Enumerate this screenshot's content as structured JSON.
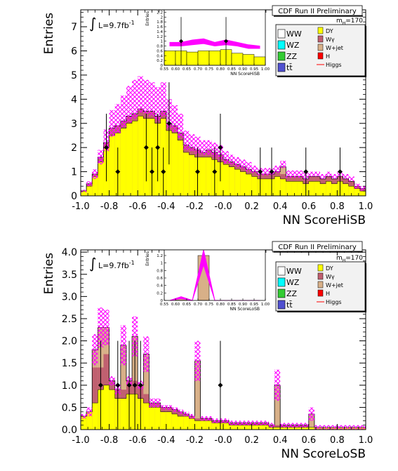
{
  "colors": {
    "DY": "#ffff00",
    "Wgamma": "#c06070",
    "Wjet": "#d8b088",
    "H": "#ff0000",
    "WW": "#ffffff",
    "WZ": "#00ffff",
    "ZZ": "#33cc33",
    "ttbar": "#5050d0",
    "band": "#ff00ff"
  },
  "chart_data": [
    {
      "type": "bar",
      "header": "CDF Run II Preliminary",
      "mass_label": "m",
      "mass_sub": "H",
      "mass_value": "=170",
      "lumi_label": "L=9.7fb",
      "lumi_sup": "-1",
      "xlabel": "NN ScoreHiSB",
      "ylabel": "Entries",
      "xlim": [
        -1.0,
        1.0
      ],
      "ylim": [
        0,
        7.7
      ],
      "x_ticks": [
        "-1.0",
        "-0.8",
        "-0.6",
        "-0.4",
        "-0.2",
        "-0.0",
        "0.2",
        "0.4",
        "0.6",
        "0.8",
        "1.0"
      ],
      "y_ticks": [
        "0",
        "1",
        "2",
        "3",
        "4",
        "5",
        "6",
        "7"
      ],
      "legend_left": [
        "WW",
        "WZ",
        "ZZ",
        "tt̄"
      ],
      "legend_right": [
        "DY",
        "Wγ",
        "W+jet",
        "H",
        "Higgs"
      ],
      "bins": [
        -1.0,
        -0.96,
        -0.92,
        -0.88,
        -0.84,
        -0.8,
        -0.76,
        -0.72,
        -0.68,
        -0.64,
        -0.6,
        -0.56,
        -0.52,
        -0.48,
        -0.44,
        -0.4,
        -0.36,
        -0.32,
        -0.28,
        -0.24,
        -0.2,
        -0.16,
        -0.12,
        -0.08,
        -0.04,
        0.0,
        0.04,
        0.08,
        0.12,
        0.16,
        0.2,
        0.24,
        0.28,
        0.32,
        0.36,
        0.4,
        0.44,
        0.48,
        0.52,
        0.56,
        0.6,
        0.64,
        0.68,
        0.72,
        0.76,
        0.8,
        0.84,
        0.88,
        0.92,
        0.96,
        1.0
      ],
      "stack": [
        {
          "name": "DY",
          "values": [
            0.2,
            0.4,
            0.8,
            1.4,
            2.0,
            2.5,
            2.6,
            2.8,
            3.0,
            3.1,
            3.3,
            3.2,
            3.2,
            3.0,
            3.2,
            2.7,
            2.6,
            2.3,
            1.8,
            1.7,
            1.6,
            1.6,
            1.6,
            1.5,
            1.4,
            1.3,
            1.2,
            1.1,
            1.0,
            0.9,
            0.8,
            0.7,
            0.7,
            0.7,
            0.8,
            0.7,
            0.6,
            0.6,
            0.6,
            0.5,
            0.6,
            0.6,
            0.5,
            0.6,
            0.5,
            0.6,
            0.5,
            0.4,
            0.3,
            0.2
          ]
        },
        {
          "name": "Wγ",
          "values": [
            0.0,
            0.1,
            0.1,
            0.2,
            0.2,
            0.3,
            0.3,
            0.3,
            0.3,
            0.3,
            0.3,
            0.3,
            0.3,
            0.3,
            0.3,
            0.3,
            0.3,
            0.3,
            0.3,
            0.3,
            0.3,
            0.2,
            0.3,
            0.3,
            0.3,
            0.2,
            0.2,
            0.2,
            0.2,
            0.2,
            0.2,
            0.2,
            0.2,
            0.2,
            0.2,
            0.2,
            0.2,
            0.2,
            0.2,
            0.2,
            0.2,
            0.2,
            0.2,
            0.2,
            0.2,
            0.2,
            0.2,
            0.2,
            0.1,
            0.1
          ]
        },
        {
          "name": "W+jet",
          "values": [
            0.0,
            0.0,
            0.0,
            0.0,
            0.0,
            0.0,
            0.0,
            0.0,
            0.0,
            0.0,
            0.0,
            0.0,
            0.0,
            0.0,
            0.0,
            0.0,
            0.0,
            0.0,
            0.0,
            0.0,
            0.0,
            0.0,
            0.0,
            0.0,
            0.0,
            0.0,
            0.0,
            0.0,
            0.0,
            0.0,
            0.0,
            0.0,
            0.0,
            0.0,
            0.0,
            0.3,
            0.0,
            0.0,
            0.0,
            0.0,
            0.0,
            0.0,
            0.0,
            0.0,
            0.0,
            0.0,
            0.0,
            0.0,
            0.0,
            0.0
          ]
        }
      ],
      "band_halfwidth": [
        0.05,
        0.1,
        0.2,
        0.3,
        0.45,
        0.55,
        0.6,
        0.65,
        0.75,
        0.8,
        0.75,
        0.7,
        0.7,
        0.7,
        0.7,
        0.6,
        0.55,
        0.5,
        0.4,
        0.35,
        0.35,
        0.3,
        0.3,
        0.3,
        0.3,
        0.25,
        0.2,
        0.2,
        0.2,
        0.2,
        0.15,
        0.15,
        0.15,
        0.15,
        0.15,
        0.15,
        0.15,
        0.15,
        0.15,
        0.15,
        0.1,
        0.1,
        0.1,
        0.1,
        0.1,
        0.1,
        0.1,
        0.1,
        0.1,
        0.1
      ],
      "band_offset": [
        0,
        0,
        0,
        0,
        0.1,
        0.2,
        0.3,
        0.4,
        0.5,
        0.6,
        0.6,
        0.6,
        0.5,
        0.5,
        0.5,
        0.4,
        0.3,
        0.3,
        0.2,
        0.2,
        0.2,
        0.2,
        0.1,
        0.1,
        0.1,
        0.1,
        0.1,
        0.1,
        0.1,
        0.1,
        0.1,
        0.1,
        0.1,
        0.1,
        0.1,
        0.1,
        0.1,
        0.1,
        0.1,
        0.1,
        0.1,
        0.1,
        0.1,
        0.1,
        0.1,
        0.1,
        0.1,
        0.1,
        0,
        0
      ],
      "data_points": [
        {
          "x": -0.82,
          "y": 2,
          "err": 1.4
        },
        {
          "x": -0.74,
          "y": 1,
          "err": 1.0
        },
        {
          "x": -0.54,
          "y": 2,
          "err": 1.4
        },
        {
          "x": -0.5,
          "y": 1,
          "err": 1.0
        },
        {
          "x": -0.46,
          "y": 2,
          "err": 1.4
        },
        {
          "x": -0.42,
          "y": 1,
          "err": 1.0
        },
        {
          "x": -0.38,
          "y": 3,
          "err": 1.7
        },
        {
          "x": -0.18,
          "y": 1,
          "err": 1.0
        },
        {
          "x": -0.06,
          "y": 1,
          "err": 1.0
        },
        {
          "x": -0.02,
          "y": 2,
          "err": 1.4
        },
        {
          "x": 0.26,
          "y": 1,
          "err": 1.0
        },
        {
          "x": 0.34,
          "y": 1,
          "err": 1.0
        },
        {
          "x": 0.58,
          "y": 1,
          "err": 1.0
        },
        {
          "x": 0.82,
          "y": 1,
          "err": 1.0
        }
      ],
      "inset": {
        "type": "bar",
        "xlabel": "NN ScoreHiSB",
        "ylabel": "Entries",
        "xlim": [
          0.55,
          1.0
        ],
        "ylim": [
          0,
          2.3
        ],
        "x_ticks": [
          "0.55",
          "0.60",
          "0.65",
          "0.70",
          "0.75",
          "0.80",
          "0.85",
          "0.90",
          "0.95",
          "1.00"
        ],
        "y_ticks": [
          "0",
          "0.2",
          "0.4",
          "0.6",
          "0.8",
          "1",
          "1.2",
          "1.4",
          "1.6",
          "1.8",
          "2",
          "2.2"
        ],
        "bins": [
          0.55,
          0.6,
          0.65,
          0.7,
          0.75,
          0.8,
          0.85,
          0.9,
          0.95,
          1.0
        ],
        "values": [
          0.6,
          0.6,
          0.55,
          0.6,
          0.6,
          0.65,
          0.5,
          0.45,
          0.35
        ],
        "band_low": [
          0.8,
          0.8,
          0.85,
          0.9,
          0.8,
          0.85,
          0.8,
          0.7,
          0.7
        ],
        "band_high": [
          0.95,
          0.95,
          1.05,
          1.1,
          0.95,
          1.05,
          0.95,
          0.85,
          0.8
        ],
        "data_points": [
          {
            "x": 0.625,
            "y": 1,
            "err": 1.0
          },
          {
            "x": 0.825,
            "y": 1,
            "err": 1.0
          }
        ]
      }
    },
    {
      "type": "bar",
      "header": "CDF Run II Preliminary",
      "mass_label": "m",
      "mass_sub": "H",
      "mass_value": "=170",
      "lumi_label": "L=9.7fb",
      "lumi_sup": "-1",
      "xlabel": "NN ScoreLoSB",
      "ylabel": "Entries",
      "xlim": [
        -1.0,
        1.0
      ],
      "ylim": [
        0,
        4.05
      ],
      "x_ticks": [
        "-1.0",
        "-0.8",
        "-0.6",
        "-0.4",
        "-0.2",
        "-0.0",
        "0.2",
        "0.4",
        "0.6",
        "0.8",
        "1.0"
      ],
      "y_ticks": [
        "0.0",
        "0.5",
        "1.0",
        "1.5",
        "2.0",
        "2.5",
        "3.0",
        "3.5",
        "4.0"
      ],
      "legend_left": [
        "WW",
        "WZ",
        "ZZ",
        "tt̄"
      ],
      "legend_right": [
        "DY",
        "Wγ",
        "W+jet",
        "H",
        "Higgs"
      ],
      "bins": [
        -1.0,
        -0.96,
        -0.92,
        -0.88,
        -0.84,
        -0.8,
        -0.76,
        -0.72,
        -0.68,
        -0.64,
        -0.6,
        -0.56,
        -0.52,
        -0.48,
        -0.44,
        -0.4,
        -0.36,
        -0.32,
        -0.28,
        -0.24,
        -0.2,
        -0.16,
        -0.12,
        -0.08,
        -0.04,
        0.0,
        0.04,
        0.08,
        0.12,
        0.16,
        0.2,
        0.24,
        0.28,
        0.32,
        0.36,
        0.4,
        0.44,
        0.48,
        0.52,
        0.56,
        0.6,
        0.64,
        0.68,
        0.72,
        0.76,
        0.8,
        0.84,
        0.88,
        0.92,
        0.96,
        1.0
      ],
      "stack": [
        {
          "name": "DY",
          "values": [
            0.3,
            0.4,
            0.6,
            0.9,
            1.0,
            0.9,
            0.7,
            0.7,
            0.8,
            0.8,
            0.7,
            0.6,
            0.5,
            0.5,
            0.4,
            0.4,
            0.35,
            0.3,
            0.3,
            0.25,
            0.2,
            0.2,
            0.2,
            0.15,
            0.15,
            0.15,
            0.1,
            0.1,
            0.1,
            0.1,
            0.1,
            0.1,
            0.1,
            0.05,
            0.05,
            0.05,
            0.05,
            0.05,
            0.05,
            0.05,
            0.05,
            0.05,
            0.05,
            0.05,
            0.05,
            0.05,
            0.05,
            0.05,
            0.05,
            0.05
          ]
        },
        {
          "name": "Wγ",
          "values": [
            0.0,
            0.0,
            0.8,
            0.5,
            0.7,
            0.2,
            0.2,
            0.2,
            0.3,
            0.3,
            0.3,
            0.2,
            0.1,
            0.1,
            0.1,
            0.1,
            0.1,
            0.1,
            0.05,
            0.05,
            0.05,
            0.05,
            0.05,
            0.05,
            0.05,
            0.05,
            0.05,
            0.05,
            0.05,
            0.05,
            0.05,
            0.05,
            0.05,
            0.05,
            0.05,
            0.05,
            0.05,
            0.05,
            0.05,
            0.05,
            0.0,
            0.0,
            0.0,
            0.0,
            0.0,
            0.0,
            0.0,
            0.0,
            0.0,
            0.0
          ]
        },
        {
          "name": "W+jet",
          "values": [
            0.0,
            0.0,
            0.4,
            0.9,
            0.6,
            0.0,
            0.0,
            1.0,
            0.0,
            1.0,
            0.0,
            0.9,
            0.0,
            0.0,
            0.0,
            0.0,
            0.0,
            0.0,
            0.0,
            0.0,
            1.3,
            0.0,
            0.0,
            0.0,
            0.0,
            0.0,
            0.0,
            0.0,
            0.0,
            0.0,
            0.0,
            0.0,
            0.0,
            0.0,
            0.9,
            0.0,
            0.0,
            0.0,
            0.0,
            0.0,
            0.3,
            0.0,
            0.0,
            0.0,
            0.0,
            0.0,
            0.0,
            0.0,
            0.0,
            0.0
          ]
        }
      ],
      "band_halfwidth": [
        0.05,
        0.1,
        0.35,
        0.45,
        0.4,
        0.1,
        0.1,
        0.45,
        0.1,
        0.45,
        0.1,
        0.4,
        0.1,
        0.1,
        0.05,
        0.05,
        0.05,
        0.05,
        0.05,
        0.05,
        0.45,
        0.05,
        0.05,
        0.05,
        0.05,
        0.05,
        0.05,
        0.05,
        0.05,
        0.05,
        0.05,
        0.05,
        0.05,
        0.05,
        0.35,
        0.05,
        0.05,
        0.05,
        0.05,
        0.05,
        0.15,
        0.05,
        0.05,
        0.05,
        0.05,
        0.05,
        0.05,
        0.05,
        0.05,
        0.05
      ],
      "band_offset": [
        0,
        0,
        0,
        0,
        0,
        0,
        0,
        0,
        0,
        0,
        0,
        0,
        0,
        0,
        0,
        0,
        0,
        0,
        0,
        0,
        0,
        0,
        0,
        0,
        0,
        0,
        0,
        0,
        0,
        0,
        0,
        0,
        0,
        0,
        0,
        0,
        0,
        0,
        0,
        0,
        0,
        0,
        0,
        0,
        0,
        0,
        0,
        0,
        0,
        0
      ],
      "data_points": [
        {
          "x": -0.86,
          "y": 1,
          "err": 1.0
        },
        {
          "x": -0.74,
          "y": 1,
          "err": 1.0
        },
        {
          "x": -0.66,
          "y": 1,
          "err": 1.0
        },
        {
          "x": -0.62,
          "y": 1,
          "err": 1.0
        },
        {
          "x": -0.58,
          "y": 1,
          "err": 1.0
        },
        {
          "x": -0.02,
          "y": 1,
          "err": 1.0
        }
      ],
      "inset": {
        "type": "bar",
        "xlabel": "NN ScoreLoSB",
        "ylabel": "Entries",
        "xlim": [
          0.55,
          1.0
        ],
        "ylim": [
          0,
          1.35
        ],
        "x_ticks": [
          "0.55",
          "0.60",
          "0.65",
          "0.70",
          "0.75",
          "0.80",
          "0.85",
          "0.90",
          "0.95",
          "1.00"
        ],
        "y_ticks": [
          "0",
          "0.2",
          "0.4",
          "0.6",
          "0.8",
          "1",
          "1.2"
        ],
        "bins": [
          0.55,
          0.6,
          0.65,
          0.7,
          0.75,
          0.8,
          0.85,
          0.9,
          0.95,
          1.0
        ],
        "values": [
          0.0,
          0.05,
          0.0,
          1.2,
          0.0,
          0.0,
          0.0,
          0.0,
          0.0
        ],
        "band_low": [
          0.0,
          0.05,
          0.0,
          0.95,
          0.0,
          0.0,
          0.0,
          0.0,
          0.0
        ],
        "band_high": [
          0.0,
          0.1,
          0.0,
          1.35,
          0.0,
          0.0,
          0.0,
          0.0,
          0.0
        ],
        "data_points": []
      }
    }
  ]
}
